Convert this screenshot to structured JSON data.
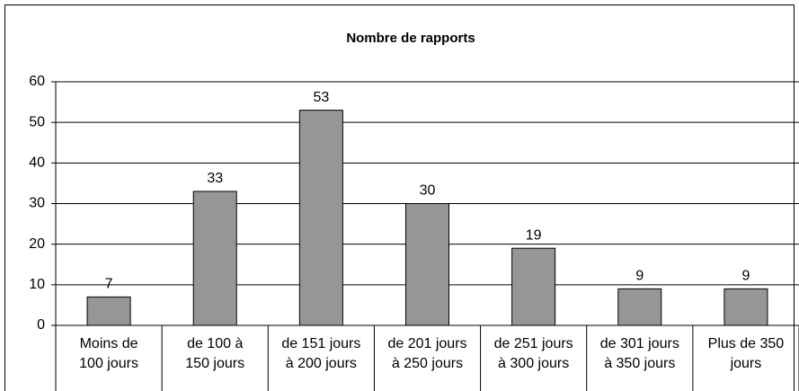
{
  "chart_data": {
    "type": "bar",
    "title": "Nombre de rapports",
    "categories": [
      "Moins de 100 jours",
      "de 100 à 150 jours",
      "de 151 jours à 200 jours",
      "de 201 jours à 250 jours",
      "de 251 jours à 300 jours",
      "de 301 jours à 350 jours",
      "Plus de 350 jours"
    ],
    "values": [
      7,
      33,
      53,
      30,
      19,
      9,
      9
    ],
    "color": "#969696",
    "ylim": [
      0,
      60
    ],
    "yticks": [
      0,
      10,
      20,
      30,
      40,
      50,
      60
    ],
    "grid": true
  }
}
